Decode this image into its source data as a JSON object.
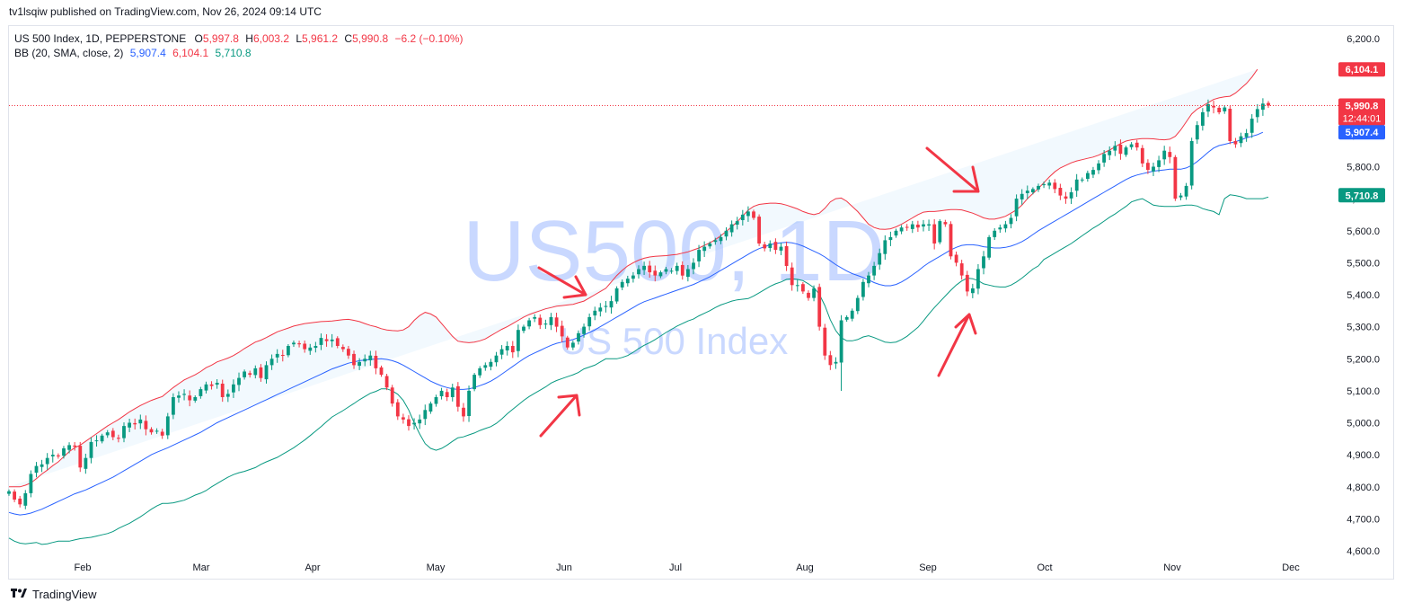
{
  "published_line": "tv1lsqiw published on TradingView.com, Nov 26, 2024 09:14 UTC",
  "legend": {
    "symbol": "US 500 Index, 1D, PEPPERSTONE",
    "o_label": "O",
    "o_value": "5,997.8",
    "h_label": "H",
    "h_value": "6,003.2",
    "l_label": "L",
    "l_value": "5,961.2",
    "c_label": "C",
    "c_value": "5,990.8",
    "change": "−6.2 (−0.10%)",
    "bb_label": "BB (20, SMA, close, 2)",
    "bb_basis": "5,907.4",
    "bb_upper": "6,104.1",
    "bb_lower": "5,710.8"
  },
  "watermark": {
    "ticker": "US500, 1D",
    "name": "US 500 Index"
  },
  "footer": {
    "brand": "TradingView"
  },
  "colors": {
    "up": "#089981",
    "down": "#f23645",
    "basis": "#2962ff",
    "upper": "#f23645",
    "lower": "#089981",
    "fill": "#2196f3",
    "watermark": "#2962ff",
    "arrow": "#f23645"
  },
  "chart_data": {
    "type": "candlestick",
    "title": "",
    "ylim": [
      4550,
      6250
    ],
    "y_ticks": [
      "6,200.0",
      "6,100.0",
      "6,000.0",
      "5,900.0",
      "5,800.0",
      "5,700.0",
      "5,600.0",
      "5,500.0",
      "5,400.0",
      "5,300.0",
      "5,200.0",
      "5,100.0",
      "5,000.0",
      "4,900.0",
      "4,800.0",
      "4,700.0",
      "4,600.0"
    ],
    "x_labels": [
      "Feb",
      "Mar",
      "Apr",
      "May",
      "Jun",
      "Jul",
      "Aug",
      "Sep",
      "Oct",
      "Nov",
      "Dec"
    ],
    "price_labels": [
      {
        "value": 6104.1,
        "text": "6,104.1",
        "color": "#f23645"
      },
      {
        "value": 5990.8,
        "text": "5,990.8",
        "sub": "12:44:01",
        "color": "#f23645"
      },
      {
        "value": 5907.4,
        "text": "5,907.4",
        "color": "#2962ff"
      },
      {
        "value": 5710.8,
        "text": "5,710.8",
        "color": "#089981"
      }
    ],
    "last_price": 5990.8,
    "closes": [
      4786,
      4760,
      4745,
      4780,
      4840,
      4865,
      4870,
      4890,
      4900,
      4895,
      4920,
      4930,
      4925,
      4860,
      4890,
      4940,
      4945,
      4960,
      4970,
      4955,
      4950,
      4990,
      5000,
      4995,
      5010,
      4980,
      4970,
      4975,
      4960,
      5020,
      5080,
      5085,
      5090,
      5070,
      5080,
      5105,
      5120,
      5115,
      5125,
      5080,
      5090,
      5120,
      5140,
      5160,
      5150,
      5170,
      5140,
      5180,
      5200,
      5215,
      5210,
      5240,
      5250,
      5245,
      5230,
      5235,
      5240,
      5265,
      5255,
      5260,
      5240,
      5230,
      5210,
      5180,
      5190,
      5200,
      5210,
      5170,
      5150,
      5110,
      5060,
      5020,
      5010,
      4990,
      5000,
      5010,
      5040,
      5060,
      5080,
      5100,
      5080,
      5110,
      5050,
      5020,
      5100,
      5150,
      5170,
      5180,
      5190,
      5210,
      5230,
      5240,
      5220,
      5290,
      5300,
      5320,
      5330,
      5305,
      5310,
      5330,
      5300,
      5270,
      5235,
      5250,
      5280,
      5300,
      5330,
      5350,
      5360,
      5365,
      5380,
      5420,
      5440,
      5450,
      5460,
      5480,
      5490,
      5470,
      5460,
      5470,
      5480,
      5475,
      5490,
      5460,
      5480,
      5500,
      5540,
      5550,
      5560,
      5570,
      5580,
      5600,
      5620,
      5630,
      5650,
      5660,
      5640,
      5560,
      5545,
      5560,
      5540,
      5550,
      5490,
      5430,
      5430,
      5410,
      5390,
      5420,
      5300,
      5210,
      5180,
      5190,
      5320,
      5330,
      5350,
      5390,
      5440,
      5460,
      5490,
      5530,
      5570,
      5580,
      5600,
      5610,
      5610,
      5620,
      5610,
      5620,
      5620,
      5560,
      5630,
      5620,
      5520,
      5500,
      5460,
      5410,
      5420,
      5480,
      5520,
      5580,
      5600,
      5610,
      5620,
      5640,
      5700,
      5715,
      5725,
      5730,
      5740,
      5745,
      5750,
      5730,
      5710,
      5700,
      5720,
      5760,
      5760,
      5780,
      5790,
      5810,
      5840,
      5850,
      5865,
      5840,
      5860,
      5870,
      5860,
      5810,
      5790,
      5800,
      5820,
      5850,
      5830,
      5700,
      5710,
      5740,
      5880,
      5930,
      5970,
      5995,
      5985,
      5970,
      5985,
      5880,
      5870,
      5895,
      5905,
      5950,
      5980,
      5997,
      5990.8
    ],
    "bb_upper": [
      4800,
      4800,
      4800,
      4805,
      4812,
      4825,
      4840,
      4852,
      4866,
      4878,
      4894,
      4910,
      4922,
      4930,
      4942,
      4954,
      4966,
      4978,
      4990,
      5000,
      5010,
      5022,
      5034,
      5044,
      5054,
      5062,
      5070,
      5076,
      5082,
      5096,
      5110,
      5122,
      5134,
      5142,
      5150,
      5160,
      5172,
      5180,
      5190,
      5196,
      5202,
      5210,
      5220,
      5232,
      5242,
      5252,
      5258,
      5266,
      5275,
      5284,
      5290,
      5296,
      5302,
      5306,
      5310,
      5312,
      5314,
      5316,
      5317,
      5318,
      5320,
      5322,
      5323,
      5320,
      5316,
      5310,
      5304,
      5300,
      5294,
      5290,
      5288,
      5287,
      5290,
      5300,
      5320,
      5335,
      5345,
      5340,
      5330,
      5310,
      5290,
      5270,
      5255,
      5252,
      5250,
      5252,
      5256,
      5262,
      5272,
      5282,
      5292,
      5300,
      5310,
      5320,
      5330,
      5338,
      5344,
      5350,
      5356,
      5360,
      5364,
      5366,
      5368,
      5370,
      5375,
      5380,
      5390,
      5400,
      5410,
      5420,
      5440,
      5460,
      5476,
      5490,
      5500,
      5508,
      5514,
      5518,
      5520,
      5521,
      5522,
      5524,
      5526,
      5530,
      5534,
      5540,
      5546,
      5554,
      5562,
      5572,
      5584,
      5598,
      5612,
      5628,
      5646,
      5664,
      5676,
      5682,
      5684,
      5686,
      5686,
      5684,
      5680,
      5674,
      5668,
      5660,
      5654,
      5650,
      5655,
      5670,
      5690,
      5700,
      5702,
      5692,
      5676,
      5660,
      5640,
      5620,
      5610,
      5605,
      5604,
      5606,
      5612,
      5620,
      5630,
      5640,
      5650,
      5658,
      5660,
      5660,
      5662,
      5664,
      5666,
      5666,
      5665,
      5660,
      5655,
      5648,
      5640,
      5636,
      5636,
      5640,
      5645,
      5655,
      5665,
      5680,
      5700,
      5716,
      5732,
      5750,
      5768,
      5784,
      5796,
      5804,
      5812,
      5818,
      5822,
      5826,
      5830,
      5836,
      5844,
      5852,
      5862,
      5872,
      5880,
      5884,
      5886,
      5888,
      5888,
      5887,
      5885,
      5884,
      5886,
      5895,
      5915,
      5940,
      5965,
      5980,
      5990,
      6000,
      6010,
      6015,
      6018,
      6020,
      6030,
      6045,
      6060,
      6080,
      6104.1
    ],
    "bb_basis": [
      4720,
      4715,
      4712,
      4714,
      4718,
      4724,
      4730,
      4738,
      4746,
      4754,
      4762,
      4770,
      4778,
      4784,
      4790,
      4798,
      4806,
      4814,
      4822,
      4830,
      4840,
      4850,
      4860,
      4870,
      4880,
      4890,
      4900,
      4908,
      4915,
      4922,
      4930,
      4938,
      4946,
      4954,
      4962,
      4970,
      4980,
      4990,
      5000,
      5008,
      5016,
      5024,
      5032,
      5040,
      5048,
      5056,
      5064,
      5072,
      5080,
      5088,
      5096,
      5104,
      5112,
      5120,
      5128,
      5136,
      5144,
      5152,
      5160,
      5168,
      5174,
      5180,
      5186,
      5190,
      5194,
      5196,
      5198,
      5199,
      5200,
      5198,
      5194,
      5188,
      5180,
      5170,
      5160,
      5150,
      5140,
      5130,
      5122,
      5115,
      5110,
      5106,
      5104,
      5104,
      5106,
      5110,
      5116,
      5122,
      5130,
      5140,
      5152,
      5164,
      5176,
      5188,
      5200,
      5210,
      5218,
      5226,
      5234,
      5242,
      5248,
      5252,
      5256,
      5260,
      5266,
      5274,
      5282,
      5290,
      5300,
      5310,
      5320,
      5330,
      5340,
      5350,
      5360,
      5370,
      5378,
      5384,
      5390,
      5396,
      5402,
      5408,
      5414,
      5420,
      5426,
      5432,
      5440,
      5448,
      5456,
      5466,
      5476,
      5486,
      5496,
      5506,
      5516,
      5526,
      5536,
      5544,
      5550,
      5556,
      5560,
      5562,
      5564,
      5562,
      5558,
      5552,
      5544,
      5536,
      5528,
      5518,
      5506,
      5494,
      5484,
      5474,
      5466,
      5460,
      5454,
      5446,
      5438,
      5432,
      5428,
      5428,
      5432,
      5440,
      5450,
      5462,
      5474,
      5488,
      5500,
      5510,
      5520,
      5530,
      5540,
      5548,
      5554,
      5556,
      5556,
      5554,
      5550,
      5548,
      5546,
      5546,
      5548,
      5552,
      5558,
      5566,
      5576,
      5588,
      5600,
      5610,
      5620,
      5630,
      5640,
      5650,
      5660,
      5670,
      5680,
      5690,
      5700,
      5710,
      5720,
      5730,
      5740,
      5750,
      5760,
      5768,
      5774,
      5778,
      5782,
      5786,
      5788,
      5790,
      5792,
      5792,
      5792,
      5796,
      5804,
      5816,
      5830,
      5845,
      5858,
      5866,
      5870,
      5874,
      5878,
      5884,
      5890,
      5895,
      5900,
      5907.4
    ],
    "bb_lower": [
      4640,
      4630,
      4624,
      4622,
      4624,
      4626,
      4620,
      4622,
      4626,
      4630,
      4630,
      4630,
      4634,
      4638,
      4640,
      4642,
      4646,
      4650,
      4654,
      4660,
      4670,
      4678,
      4686,
      4696,
      4706,
      4718,
      4730,
      4740,
      4748,
      4748,
      4750,
      4754,
      4758,
      4766,
      4774,
      4780,
      4788,
      4800,
      4810,
      4820,
      4830,
      4838,
      4844,
      4848,
      4854,
      4860,
      4870,
      4878,
      4885,
      4892,
      4902,
      4912,
      4922,
      4934,
      4946,
      4960,
      4974,
      4988,
      5003,
      5018,
      5028,
      5038,
      5049,
      5060,
      5072,
      5082,
      5092,
      5098,
      5106,
      5106,
      5100,
      5089,
      5070,
      5040,
      5000,
      4965,
      4935,
      4920,
      4914,
      4920,
      4930,
      4942,
      4953,
      4956,
      4962,
      4968,
      4976,
      4982,
      4988,
      4998,
      5012,
      5028,
      5042,
      5056,
      5070,
      5082,
      5092,
      5102,
      5112,
      5124,
      5132,
      5138,
      5144,
      5150,
      5157,
      5168,
      5174,
      5180,
      5190,
      5200,
      5200,
      5200,
      5204,
      5210,
      5220,
      5232,
      5242,
      5250,
      5260,
      5271,
      5282,
      5292,
      5302,
      5310,
      5318,
      5324,
      5334,
      5342,
      5350,
      5360,
      5368,
      5374,
      5380,
      5384,
      5386,
      5388,
      5396,
      5406,
      5416,
      5426,
      5434,
      5440,
      5448,
      5450,
      5448,
      5444,
      5434,
      5422,
      5401,
      5366,
      5322,
      5288,
      5266,
      5256,
      5256,
      5260,
      5268,
      5272,
      5266,
      5259,
      5252,
      5250,
      5252,
      5260,
      5270,
      5284,
      5298,
      5318,
      5340,
      5360,
      5378,
      5396,
      5414,
      5430,
      5443,
      5452,
      5450,
      5444,
      5434,
      5430,
      5426,
      5424,
      5424,
      5430,
      5440,
      5452,
      5466,
      5480,
      5490,
      5510,
      5520,
      5530,
      5540,
      5550,
      5560,
      5572,
      5584,
      5596,
      5608,
      5618,
      5630,
      5642,
      5652,
      5664,
      5676,
      5690,
      5696,
      5700,
      5690,
      5680,
      5677,
      5676,
      5676,
      5676,
      5678,
      5680,
      5680,
      5677,
      5669,
      5664,
      5660,
      5650,
      5700,
      5712,
      5710,
      5706,
      5700,
      5700,
      5700,
      5700,
      5705,
      5710,
      5710.8
    ]
  }
}
